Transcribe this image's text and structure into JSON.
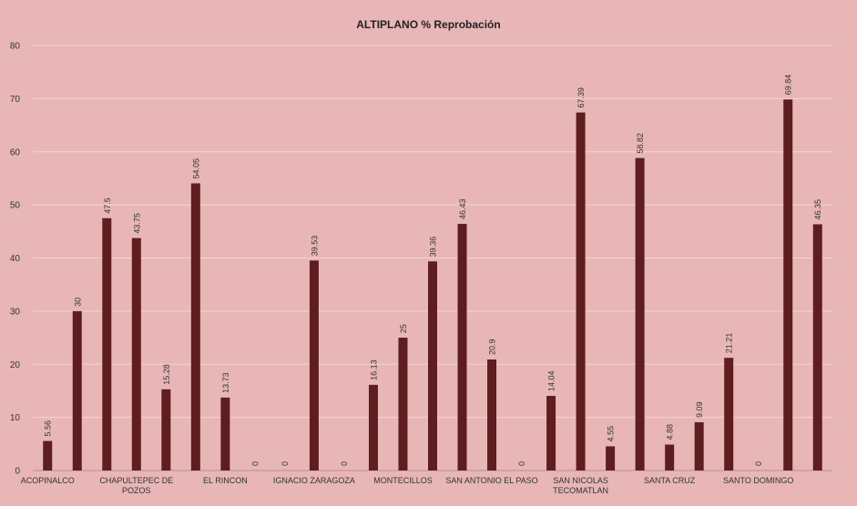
{
  "chart_data": {
    "type": "bar",
    "title": "ALTIPLANO % Reprobación",
    "xlabel": "",
    "ylabel": "",
    "ylim": [
      0,
      80
    ],
    "yticks": [
      0,
      10,
      20,
      30,
      40,
      50,
      60,
      70,
      80
    ],
    "grid": "horizontal",
    "legend": "none",
    "bar_color": "#5e1d1f",
    "background_color": "#e8b6b7",
    "gridline_color": "#f3d3d3",
    "values": [
      5.56,
      30,
      47.5,
      43.75,
      15.28,
      54.05,
      13.73,
      0,
      0,
      39.53,
      0,
      16.13,
      25,
      39.36,
      46.43,
      20.9,
      0,
      14.04,
      67.39,
      4.55,
      58.82,
      4.88,
      9.09,
      21.21,
      0,
      69.84,
      46.35
    ],
    "data_labels": [
      "5.56",
      "30",
      "47.5",
      "43.75",
      "15.28",
      "54.05",
      "13.73",
      "0",
      "0",
      "39.53",
      "0",
      "16.13",
      "25",
      "39.36",
      "46.43",
      "20.9",
      "0",
      "14.04",
      "67.39",
      "4.55",
      "58.82",
      "4.88",
      "9.09",
      "21.21",
      "0",
      "69.84",
      "46.35"
    ],
    "category_labels": [
      {
        "lines": [
          "ACOPINALCO"
        ],
        "bar_index": 0
      },
      {
        "lines": [
          "CHAPULTEPEC DE",
          "POZOS"
        ],
        "bar_index": 3
      },
      {
        "lines": [
          "EL RINCON"
        ],
        "bar_index": 6
      },
      {
        "lines": [
          "IGNACIO ZARAGOZA"
        ],
        "bar_index": 9
      },
      {
        "lines": [
          "MONTECILLOS"
        ],
        "bar_index": 12
      },
      {
        "lines": [
          "SAN ANTONIO EL PASO"
        ],
        "bar_index": 15
      },
      {
        "lines": [
          "SAN NICOLAS",
          "TECOMATLAN"
        ],
        "bar_index": 18
      },
      {
        "lines": [
          "SANTA CRUZ"
        ],
        "bar_index": 21
      },
      {
        "lines": [
          "SANTO DOMINGO"
        ],
        "bar_index": 24
      }
    ]
  }
}
